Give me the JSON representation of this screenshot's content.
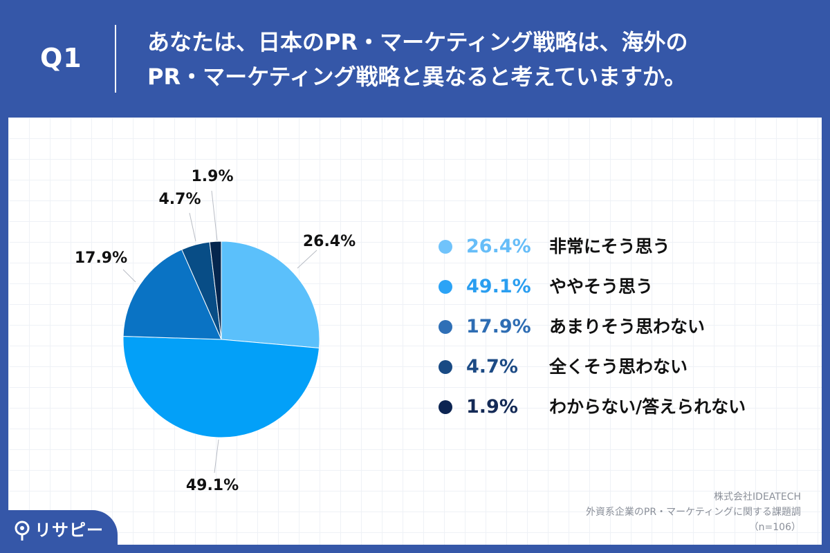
{
  "header": {
    "question_label": "Q1",
    "title_line1": "あなたは、日本のPR・マーケティング戦略は、海外の",
    "title_line2": "PR・マーケティング戦略と異なると考えていますか。"
  },
  "chart_data": {
    "type": "pie",
    "start_angle": "12 o'clock",
    "direction": "clockwise",
    "slices": [
      {
        "label": "非常にそう思う",
        "value": 26.4,
        "display": "26.4%",
        "color": "#5bc0fb"
      },
      {
        "label": "ややそう思う",
        "value": 49.1,
        "display": "49.1%",
        "color": "#03a0f8"
      },
      {
        "label": "あまりそう思わない",
        "value": 17.9,
        "display": "17.9%",
        "color": "#0a73c4"
      },
      {
        "label": "全くそう思わない",
        "value": 4.7,
        "display": "4.7%",
        "color": "#084d86"
      },
      {
        "label": "わからない/答えられない",
        "value": 1.9,
        "display": "1.9%",
        "color": "#05264e"
      }
    ],
    "legend_placement": "right"
  },
  "legend": {
    "items": [
      {
        "pct": "26.4%",
        "text": "非常にそう思う",
        "dot_color": "#70c3fb",
        "pct_color": "#66bdf8"
      },
      {
        "pct": "49.1%",
        "text": "ややそう思う",
        "dot_color": "#2ba3f6",
        "pct_color": "#2a9ef0"
      },
      {
        "pct": "17.9%",
        "text": "あまりそう思わない",
        "dot_color": "#2f6fb6",
        "pct_color": "#2e6db3"
      },
      {
        "pct": "4.7%",
        "text": "全くそう思わない",
        "dot_color": "#194a84",
        "pct_color": "#1d4b85"
      },
      {
        "pct": "1.9%",
        "text": "わからない/答えられない",
        "dot_color": "#0c2452",
        "pct_color": "#142a56"
      }
    ]
  },
  "source": {
    "company": "株式会社IDEATECH",
    "survey": "外資系企業のPR・マーケティングに関する課題調",
    "sample": "（n=106）"
  },
  "brand": {
    "name": "リサピー"
  }
}
